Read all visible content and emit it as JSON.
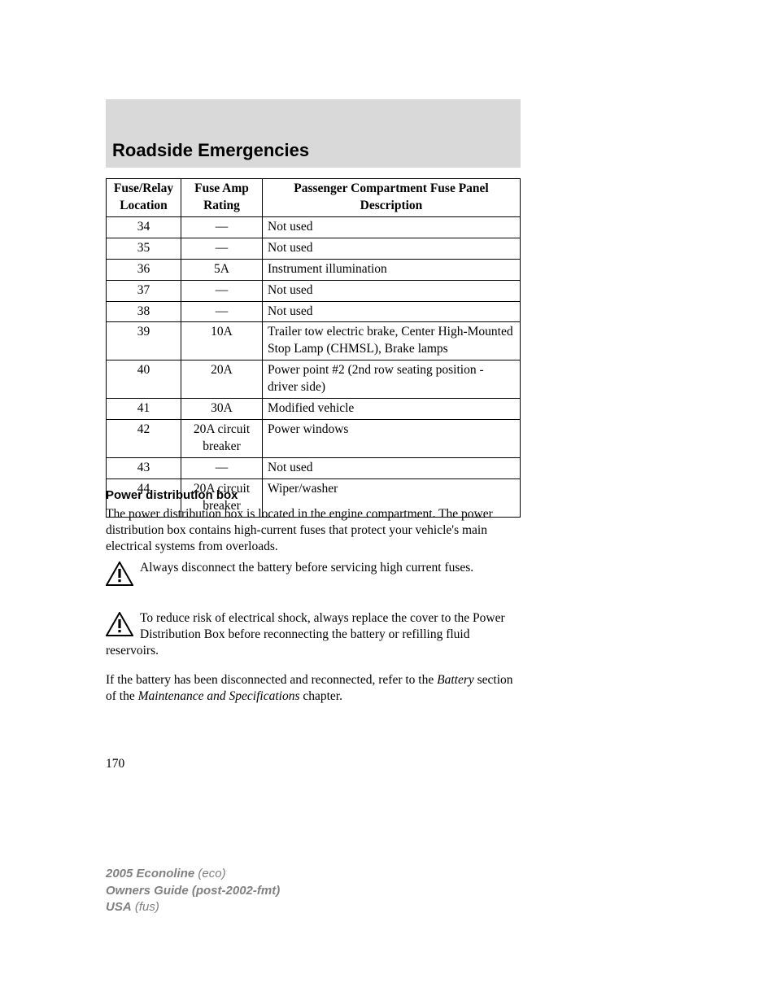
{
  "header": {
    "title": "Roadside Emergencies",
    "band_color": "#d9d9d9"
  },
  "table": {
    "headers": {
      "col1_l1": "Fuse/Relay",
      "col1_l2": "Location",
      "col2_l1": "Fuse Amp",
      "col2_l2": "Rating",
      "col3_l1": "Passenger Compartment Fuse Panel",
      "col3_l2": "Description"
    },
    "rows": [
      {
        "loc": "34",
        "amp": "—",
        "desc": "Not used"
      },
      {
        "loc": "35",
        "amp": "—",
        "desc": "Not used"
      },
      {
        "loc": "36",
        "amp": "5A",
        "desc": "Instrument illumination"
      },
      {
        "loc": "37",
        "amp": "—",
        "desc": "Not used"
      },
      {
        "loc": "38",
        "amp": "—",
        "desc": "Not used"
      },
      {
        "loc": "39",
        "amp": "10A",
        "desc": "Trailer tow electric brake, Center High-Mounted Stop Lamp (CHMSL), Brake lamps"
      },
      {
        "loc": "40",
        "amp": "20A",
        "desc": "Power point #2 (2nd row seating position - driver side)"
      },
      {
        "loc": "41",
        "amp": "30A",
        "desc": "Modified vehicle"
      },
      {
        "loc": "42",
        "amp": "20A circuit breaker",
        "desc": "Power windows"
      },
      {
        "loc": "43",
        "amp": "—",
        "desc": "Not used"
      },
      {
        "loc": "44",
        "amp": "20A circuit breaker",
        "desc": "Wiper/washer"
      }
    ]
  },
  "subsection": {
    "title": "Power distribution box",
    "body": "The power distribution box is located in the engine compartment. The power distribution box contains high-current fuses that protect your vehicle's main electrical systems from overloads."
  },
  "warnings": [
    {
      "text": "Always disconnect the battery before servicing high current fuses."
    },
    {
      "text": "To reduce risk of electrical shock, always replace the cover to the Power Distribution Box before reconnecting the battery or refilling fluid reservoirs."
    }
  ],
  "closing": {
    "pre": "If the battery has been disconnected and reconnected, refer to the ",
    "ital1": "Battery",
    "mid": " section of the ",
    "ital2": "Maintenance and Specifications",
    "post": " chapter."
  },
  "page_number": "170",
  "footer": {
    "l1_bold": "2005 Econoline",
    "l1_ital": " (eco)",
    "l2_bold": "Owners Guide (post-2002-fmt)",
    "l3_bold": "USA",
    "l3_ital": " (fus)"
  },
  "colors": {
    "text": "#000000",
    "footer_text": "#808080",
    "band": "#d9d9d9",
    "background": "#ffffff"
  }
}
